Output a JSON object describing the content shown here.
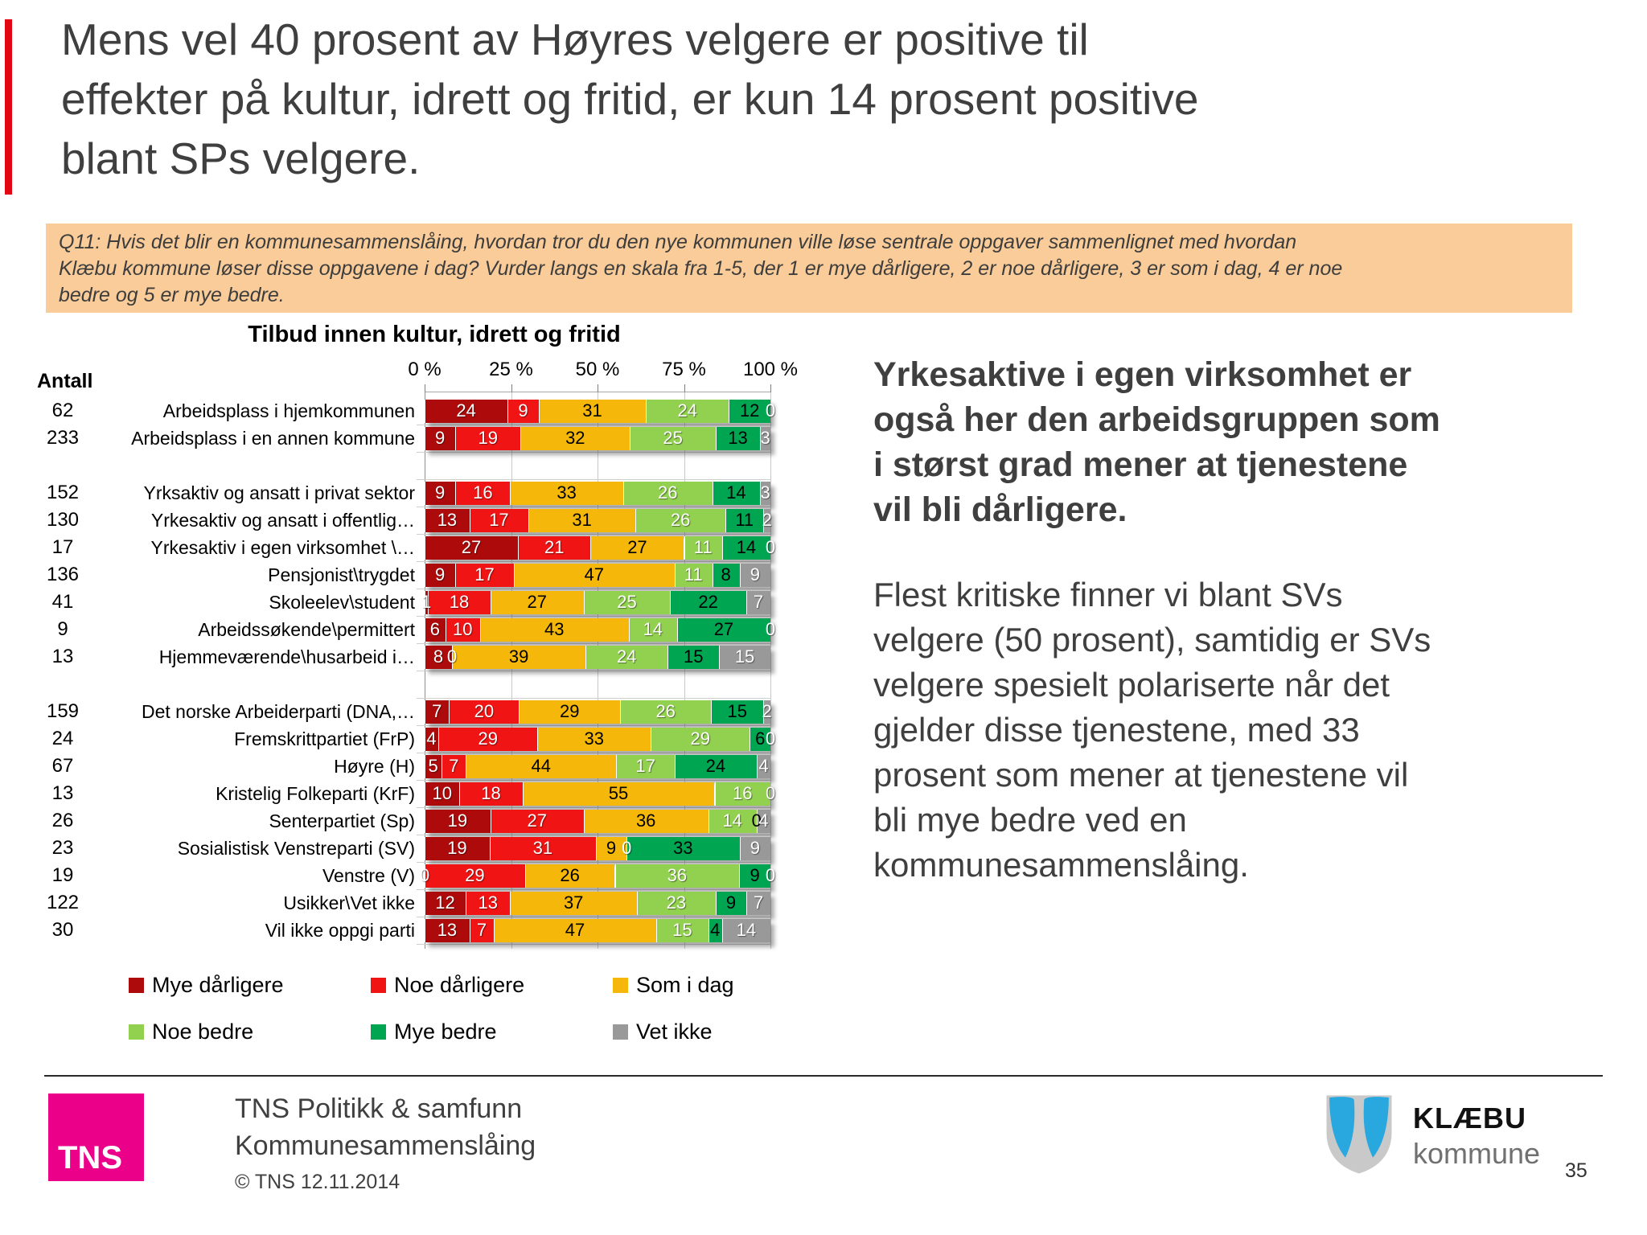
{
  "slide": {
    "title_lines": [
      "Mens vel 40 prosent av Høyres velgere er positive til",
      "effekter på kultur, idrett og fritid, er kun 14 prosent positive",
      "blant SPs velgere."
    ],
    "question_lines": [
      "Q11: Hvis det blir en kommunesammenslåing, hvordan tror du den nye kommunen ville løse sentrale oppgaver sammenlignet med hvordan",
      "Klæbu kommune løser disse oppgavene i dag? Vurder langs en skala fra 1-5, der 1 er mye dårligere, 2 er noe dårligere, 3 er som i dag, 4 er noe",
      "bedre og 5 er mye bedre."
    ],
    "page_number": "35"
  },
  "chart_data": {
    "type": "bar",
    "orientation": "horizontal-stacked",
    "title": "Tilbud innen kultur, idrett og fritid",
    "count_header": "Antall",
    "x_ticks": [
      "0 %",
      "25 %",
      "50 %",
      "75 %",
      "100 %"
    ],
    "x_range": [
      0,
      100
    ],
    "legend_position": "bottom",
    "series": [
      {
        "label": "Mye dårligere",
        "color": "#AD0B0B",
        "text_color": "#FFFFFF"
      },
      {
        "label": "Noe dårligere",
        "color": "#F01414",
        "text_color": "#FFFFFF"
      },
      {
        "label": "Som i dag",
        "color": "#F5B80A",
        "text_color": "#000000"
      },
      {
        "label": "Noe bedre",
        "color": "#92D050",
        "text_color": "#FFFFFF"
      },
      {
        "label": "Mye bedre",
        "color": "#00A551",
        "text_color": "#000000"
      },
      {
        "label": "Vet ikke",
        "color": "#999999",
        "text_color": "#FFFFFF"
      }
    ],
    "rows": [
      {
        "count": "62",
        "label": "Arbeidsplass i hjemkommunen",
        "values": [
          24,
          9,
          31,
          24,
          12,
          0
        ]
      },
      {
        "count": "233",
        "label": "Arbeidsplass i en annen kommune",
        "values": [
          9,
          19,
          32,
          25,
          13,
          3
        ]
      },
      {
        "spacer": true
      },
      {
        "count": "152",
        "label": "Yrksaktiv og ansatt i privat sektor",
        "values": [
          9,
          16,
          33,
          26,
          14,
          3
        ]
      },
      {
        "count": "130",
        "label": "Yrkesaktiv og ansatt i offentlig…",
        "values": [
          13,
          17,
          31,
          26,
          11,
          2
        ]
      },
      {
        "count": "17",
        "label": "Yrkesaktiv i egen virksomhet \\…",
        "values": [
          27,
          21,
          27,
          11,
          14,
          0
        ]
      },
      {
        "count": "136",
        "label": "Pensjonist\\trygdet",
        "values": [
          9,
          17,
          47,
          11,
          8,
          9
        ]
      },
      {
        "count": "41",
        "label": "Skoleelev\\student",
        "values": [
          1,
          18,
          27,
          25,
          22,
          7
        ]
      },
      {
        "count": "9",
        "label": "Arbeidssøkende\\permittert",
        "values": [
          6,
          10,
          43,
          14,
          27,
          0
        ]
      },
      {
        "count": "13",
        "label": "Hjemmeværende\\husarbeid i…",
        "values": [
          8,
          0,
          39,
          24,
          15,
          15
        ]
      },
      {
        "spacer": true
      },
      {
        "count": "159",
        "label": "Det norske Arbeiderparti (DNA,…",
        "values": [
          7,
          20,
          29,
          26,
          15,
          2
        ]
      },
      {
        "count": "24",
        "label": "Fremskrittpartiet (FrP)",
        "values": [
          4,
          29,
          33,
          29,
          6,
          0
        ]
      },
      {
        "count": "67",
        "label": "Høyre (H)",
        "values": [
          5,
          7,
          44,
          17,
          24,
          4
        ]
      },
      {
        "count": "13",
        "label": "Kristelig Folkeparti (KrF)",
        "values": [
          10,
          18,
          55,
          16,
          0,
          0
        ]
      },
      {
        "count": "26",
        "label": "Senterpartiet (Sp)",
        "values": [
          19,
          27,
          36,
          14,
          0,
          4
        ]
      },
      {
        "count": "23",
        "label": "Sosialistisk Venstreparti (SV)",
        "values": [
          19,
          31,
          9,
          0,
          33,
          9
        ]
      },
      {
        "count": "19",
        "label": "Venstre (V)",
        "values": [
          0,
          29,
          26,
          36,
          9,
          0
        ]
      },
      {
        "count": "122",
        "label": "Usikker\\Vet ikke",
        "values": [
          12,
          13,
          37,
          23,
          9,
          7
        ]
      },
      {
        "count": "30",
        "label": "Vil ikke oppgi parti",
        "values": [
          13,
          7,
          47,
          15,
          4,
          14
        ]
      }
    ]
  },
  "commentary": {
    "heading_lines": [
      "Yrkesaktive i egen virksomhet er",
      "også her den arbeidsgruppen som",
      "i størst grad mener at tjenestene",
      "vil bli dårligere."
    ],
    "body_lines": [
      "Flest kritiske finner vi blant SVs",
      "velgere (50 prosent), samtidig er SVs",
      "velgere spesielt polariserte når det",
      "gjelder disse tjenestene, med 33",
      "prosent som mener at tjenestene vil",
      "bli mye bedre ved en",
      "kommunesammenslåing."
    ]
  },
  "footer": {
    "logo_text": "TNS",
    "org": "TNS Politikk & samfunn",
    "project": "Kommunesammenslåing",
    "copyright": "© TNS 12.11.2014",
    "municipality_name": "KLÆBU",
    "municipality_sub": "kommune"
  },
  "colors": {
    "accent_bar": "#E30613",
    "question_bg": "#FACC99",
    "tns_magenta": "#EB0089",
    "shield_blue": "#29A8E0",
    "shield_gray": "#C9C9C9"
  }
}
